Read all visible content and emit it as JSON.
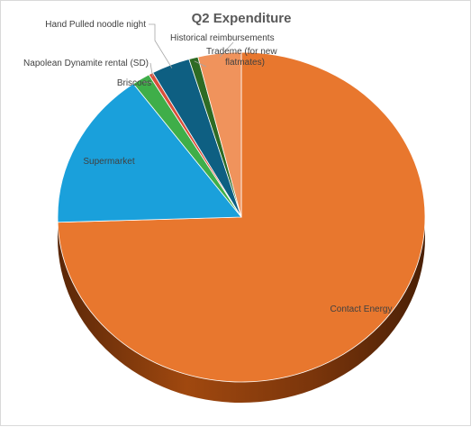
{
  "chart_data": {
    "type": "pie",
    "title": "Q2 Expenditure",
    "style": "3d-exploded-none",
    "categories": [
      "Contact Energy",
      "Supermarket",
      "Briscoes",
      "Napolean Dynamite rental (SD)",
      "Hand Pulled noodle night",
      "Trademe (for new flatmates)",
      "Historical reimbursements"
    ],
    "values": [
      74.5,
      15.5,
      1.6,
      0.4,
      3.4,
      0.8,
      3.8
    ],
    "units": "percent of total (estimated)",
    "colors": [
      "#E8772E",
      "#1AA0DB",
      "#3FAE49",
      "#D94F3B",
      "#0E5F82",
      "#2E6B24",
      "#F0935C"
    ],
    "labels": [
      {
        "text": "Contact Energy",
        "leader": false
      },
      {
        "text": "Supermarket",
        "leader": false
      },
      {
        "text": "Briscoes",
        "leader": true
      },
      {
        "text": "Napolean Dynamite rental (SD)",
        "leader": true
      },
      {
        "text": "Hand Pulled noodle night",
        "leader": true
      },
      {
        "text": "Trademe (for new flatmates)",
        "leader": true
      },
      {
        "text": "Historical reimbursements",
        "leader": true
      }
    ],
    "legend": "none"
  }
}
